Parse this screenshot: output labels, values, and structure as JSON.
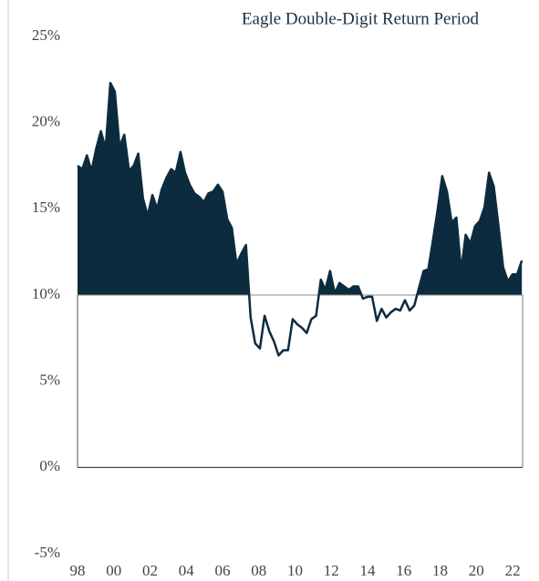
{
  "chart_data": {
    "type": "line",
    "title": "Eagle Double-Digit Return Period",
    "threshold": 10,
    "x": [
      1998.0,
      1998.26,
      1998.52,
      1998.77,
      1999.03,
      1999.29,
      1999.55,
      1999.81,
      2000.06,
      2000.32,
      2000.58,
      2000.84,
      2001.1,
      2001.35,
      2001.61,
      2001.87,
      2002.13,
      2002.39,
      2002.64,
      2002.9,
      2003.16,
      2003.42,
      2003.68,
      2003.93,
      2004.19,
      2004.45,
      2004.71,
      2004.97,
      2005.22,
      2005.48,
      2005.74,
      2006.0,
      2006.26,
      2006.51,
      2006.77,
      2007.03,
      2007.29,
      2007.55,
      2007.8,
      2008.06,
      2008.32,
      2008.58,
      2008.84,
      2009.09,
      2009.35,
      2009.61,
      2009.87,
      2010.13,
      2010.38,
      2010.64,
      2010.9,
      2011.16,
      2011.42,
      2011.67,
      2011.93,
      2012.19,
      2012.45,
      2012.71,
      2012.96,
      2013.22,
      2013.48,
      2013.74,
      2014.0,
      2014.25,
      2014.51,
      2014.77,
      2015.03,
      2015.29,
      2015.54,
      2015.8,
      2016.06,
      2016.32,
      2016.58,
      2016.83,
      2017.09,
      2017.35,
      2017.61,
      2017.87,
      2018.12,
      2018.38,
      2018.64,
      2018.9,
      2019.16,
      2019.41,
      2019.67,
      2019.93,
      2020.19,
      2020.45,
      2020.7,
      2020.96,
      2021.22,
      2021.48,
      2021.74,
      2021.99,
      2022.25,
      2022.51
    ],
    "series": [
      {
        "color": "#0d2b3e",
        "values": [
          17.5,
          17.3,
          18.1,
          17.2,
          18.5,
          19.5,
          18.5,
          22.3,
          21.8,
          18.6,
          19.3,
          17.2,
          17.5,
          18.2,
          15.6,
          14.6,
          15.8,
          15.0,
          16.1,
          16.8,
          17.3,
          17.1,
          18.3,
          17.1,
          16.4,
          15.9,
          15.7,
          15.4,
          15.9,
          16.0,
          16.4,
          16.0,
          14.4,
          13.9,
          11.8,
          12.4,
          12.9,
          8.7,
          7.2,
          6.9,
          8.8,
          7.9,
          7.3,
          6.5,
          6.8,
          6.8,
          8.6,
          8.3,
          8.1,
          7.8,
          8.6,
          8.8,
          10.9,
          10.3,
          11.4,
          10.1,
          10.7,
          10.5,
          10.3,
          10.5,
          10.5,
          9.8,
          9.9,
          9.9,
          8.5,
          9.2,
          8.7,
          9.0,
          9.2,
          9.1,
          9.7,
          9.1,
          9.4,
          10.4,
          11.4,
          11.5,
          13.2,
          15.0,
          16.9,
          16.0,
          14.2,
          14.5,
          11.4,
          13.5,
          13.0,
          14.0,
          14.3,
          15.1,
          17.1,
          16.3,
          14.0,
          11.6,
          10.8,
          11.2,
          11.2,
          12.0
        ]
      }
    ],
    "xlim": [
      1998,
      2022.55
    ],
    "xticks": [
      {
        "value": 1998,
        "label": "98"
      },
      {
        "value": 2000,
        "label": "00"
      },
      {
        "value": 2002,
        "label": "02"
      },
      {
        "value": 2004,
        "label": "04"
      },
      {
        "value": 2006,
        "label": "06"
      },
      {
        "value": 2008,
        "label": "08"
      },
      {
        "value": 2010,
        "label": "10"
      },
      {
        "value": 2012,
        "label": "12"
      },
      {
        "value": 2014,
        "label": "14"
      },
      {
        "value": 2016,
        "label": "16"
      },
      {
        "value": 2018,
        "label": "18"
      },
      {
        "value": 2020,
        "label": "20"
      },
      {
        "value": 2022,
        "label": "22"
      }
    ],
    "ylim": [
      -5,
      25
    ],
    "yticks": [
      {
        "value": -5,
        "label": "-5%"
      },
      {
        "value": 0,
        "label": "0%"
      },
      {
        "value": 5,
        "label": "5%"
      },
      {
        "value": 10,
        "label": "10%"
      },
      {
        "value": 15,
        "label": "15%"
      },
      {
        "value": 20,
        "label": "20%"
      },
      {
        "value": 25,
        "label": "25%"
      }
    ]
  }
}
